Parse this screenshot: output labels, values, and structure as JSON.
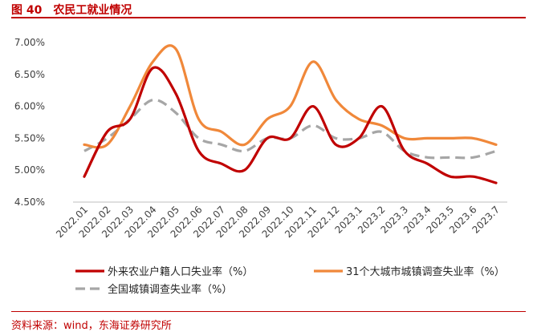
{
  "figure": {
    "number": "图 40",
    "title": "农民工就业情况"
  },
  "source": "资料来源：wind，东海证券研究所",
  "colors": {
    "title_red": "#c00000",
    "series_1": "#c00000",
    "series_2": "#f0883a",
    "series_3": "#a6a6a6"
  },
  "chart_data": {
    "type": "line",
    "title": "",
    "xlabel": "",
    "ylabel": "",
    "ylim": [
      4.5,
      7.0
    ],
    "yticks": [
      "4.50%",
      "5.00%",
      "5.50%",
      "6.00%",
      "6.50%",
      "7.00%"
    ],
    "grid": false,
    "legend_position": "bottom",
    "categories": [
      "2022.01",
      "2022.02",
      "2022.03",
      "2022.04",
      "2022.05",
      "2022.06",
      "2022.07",
      "2022.08",
      "2022.09",
      "2022.10",
      "2022.11",
      "2022.12",
      "2023.1",
      "2023.2",
      "2023.3",
      "2023.4",
      "2023.5",
      "2023.6",
      "2023.7"
    ],
    "series": [
      {
        "name": "外来农业户籍人口失业率（%）",
        "color": "#c00000",
        "style": "solid",
        "values": [
          4.9,
          5.6,
          5.8,
          6.6,
          6.2,
          5.3,
          5.1,
          5.0,
          5.5,
          5.5,
          6.0,
          5.4,
          5.5,
          6.0,
          5.3,
          5.1,
          4.9,
          4.9,
          4.8
        ]
      },
      {
        "name": "31个大城市城镇调查失业率（%）",
        "color": "#f0883a",
        "style": "solid",
        "values": [
          5.4,
          5.4,
          6.0,
          6.7,
          6.9,
          5.8,
          5.6,
          5.4,
          5.8,
          6.0,
          6.7,
          6.1,
          5.8,
          5.7,
          5.5,
          5.5,
          5.5,
          5.5,
          5.4
        ]
      },
      {
        "name": "全国城镇调查失业率（%）",
        "color": "#a6a6a6",
        "style": "dashed",
        "values": [
          5.3,
          5.5,
          5.8,
          6.1,
          5.9,
          5.5,
          5.4,
          5.3,
          5.5,
          5.5,
          5.7,
          5.5,
          5.5,
          5.6,
          5.3,
          5.2,
          5.2,
          5.2,
          5.3
        ]
      }
    ]
  }
}
